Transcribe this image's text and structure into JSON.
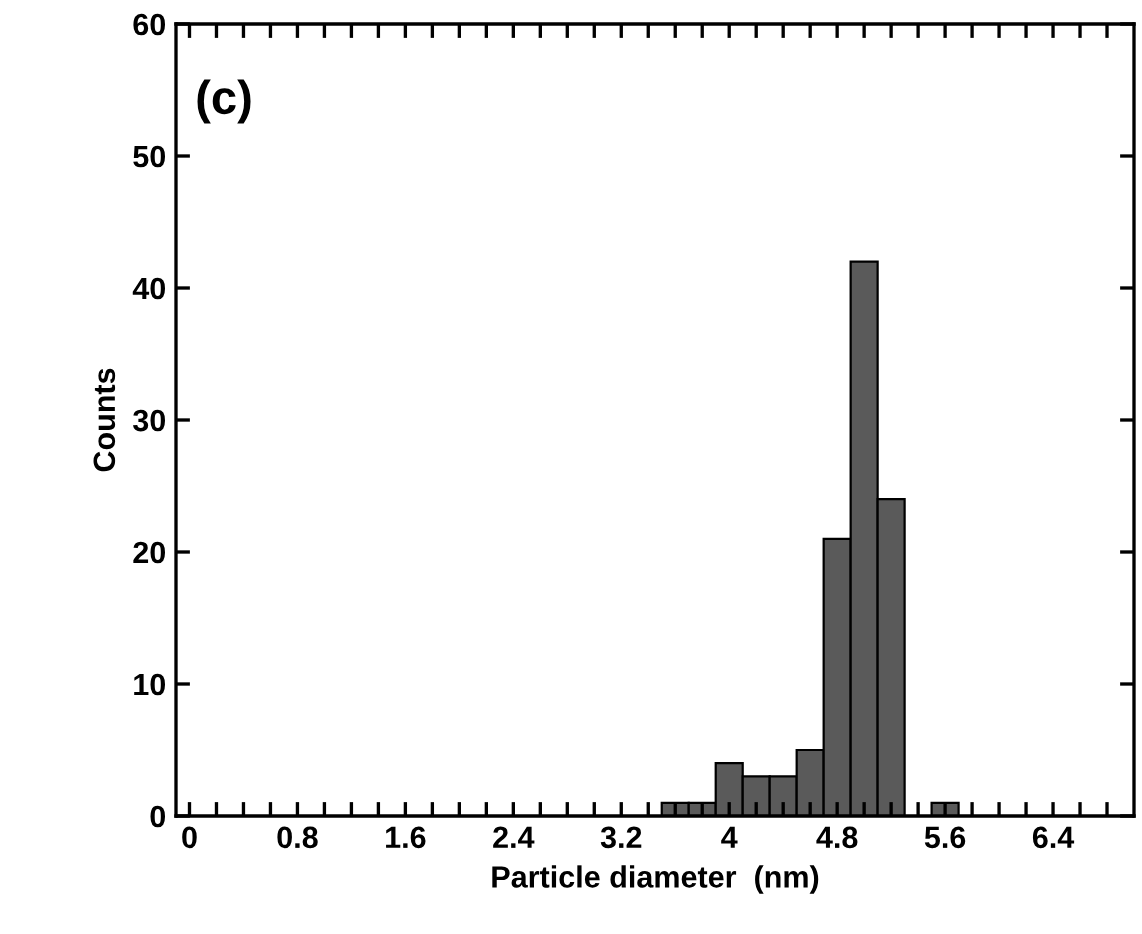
{
  "chart_data": {
    "type": "histogram",
    "xlabel": "Particle diameter  (nm)",
    "ylabel": "Counts",
    "annotations": [
      "(c)"
    ],
    "bins": [
      3.5,
      3.7,
      3.9,
      4.1,
      4.3,
      4.5,
      4.7,
      4.9,
      5.1,
      5.3,
      5.5,
      5.7
    ],
    "values": [
      1,
      1,
      4,
      3,
      3,
      5,
      21,
      42,
      24,
      0,
      1
    ],
    "color": "#5a5a5a",
    "xlim": [
      -0.1,
      7.0
    ],
    "xticks": [
      0,
      {
        "value": 0.2,
        "label": null
      },
      {
        "value": 0.4,
        "label": null
      },
      {
        "value": 0.6,
        "label": null
      },
      0.8,
      {
        "value": 1.0,
        "label": null
      },
      {
        "value": 1.2,
        "label": null
      },
      {
        "value": 1.4,
        "label": null
      },
      1.6,
      {
        "value": 1.8,
        "label": null
      },
      {
        "value": 2.0,
        "label": null
      },
      {
        "value": 2.2,
        "label": null
      },
      2.4,
      {
        "value": 2.6,
        "label": null
      },
      {
        "value": 2.8,
        "label": null
      },
      {
        "value": 3.0,
        "label": null
      },
      3.2,
      {
        "value": 3.4,
        "label": null
      },
      {
        "value": 3.6,
        "label": null
      },
      {
        "value": 3.8,
        "label": null
      },
      4,
      {
        "value": 4.2,
        "label": null
      },
      {
        "value": 4.4,
        "label": null
      },
      {
        "value": 4.6,
        "label": null
      },
      4.8,
      {
        "value": 5.0,
        "label": null
      },
      {
        "value": 5.2,
        "label": null
      },
      {
        "value": 5.4,
        "label": null
      },
      5.6,
      {
        "value": 5.8,
        "label": null
      },
      {
        "value": 6.0,
        "label": null
      },
      {
        "value": 6.2,
        "label": null
      },
      6.4,
      {
        "value": 6.6,
        "label": null
      },
      {
        "value": 6.8,
        "label": null
      }
    ],
    "ylim": [
      0,
      60
    ],
    "yticks": [
      0,
      10,
      20,
      30,
      40,
      50,
      60
    ],
    "grid": false
  }
}
